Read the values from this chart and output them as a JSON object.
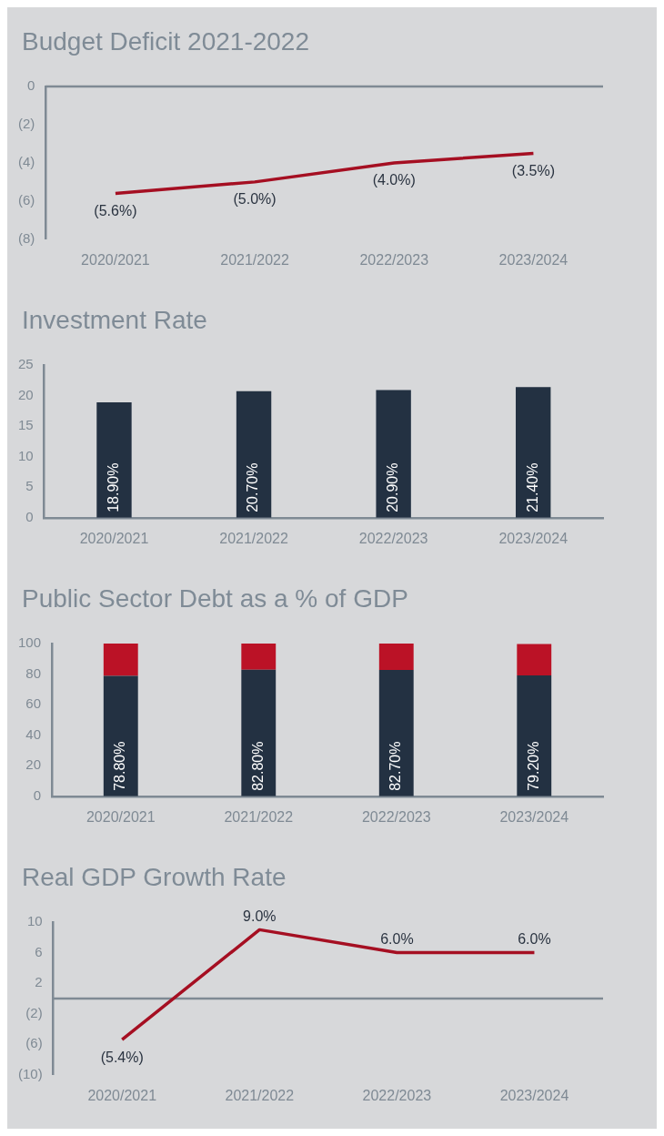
{
  "chart_data": [
    {
      "type": "line",
      "title": "Budget Deficit 2021-2022",
      "categories": [
        "2020/2021",
        "2021/2022",
        "2022/2023",
        "2023/2024"
      ],
      "values": [
        -5.6,
        -5.0,
        -4.0,
        -3.5
      ],
      "color": "#a50f22",
      "value_labels": [
        "(5.6%)",
        "(5.0%)",
        "(4.0%)",
        "(3.5%)"
      ],
      "ylim": [
        -8,
        0
      ],
      "yticks": [
        {
          "value": -8,
          "label": "(8)"
        },
        {
          "value": -6,
          "label": "(6)"
        },
        {
          "value": -4,
          "label": "(4)"
        },
        {
          "value": -2,
          "label": "(2)"
        },
        0
      ],
      "ref_lines": [
        {
          "axis": "y",
          "value": 0,
          "color": "#7f8a94"
        }
      ],
      "grid": false,
      "legend": false,
      "marker": "none"
    },
    {
      "type": "bar",
      "title": "Investment Rate",
      "categories": [
        "2020/2021",
        "2021/2022",
        "2022/2023",
        "2023/2024"
      ],
      "values": [
        18.9,
        20.7,
        20.9,
        21.4
      ],
      "color": "#233142",
      "value_labels": [
        "18.90%",
        "20.70%",
        "20.90%",
        "21.40%"
      ],
      "ylim": [
        0,
        25
      ],
      "yticks": [
        0,
        5,
        10,
        15,
        20,
        25
      ],
      "grid": false,
      "legend": false
    },
    {
      "type": "bar",
      "title": "Public Sector Debt as a % of GDP",
      "categories": [
        "2020/2021",
        "2021/2022",
        "2022/2023",
        "2023/2024"
      ],
      "stacked": true,
      "series": [
        {
          "color": "#233142",
          "values": [
            78.8,
            82.8,
            82.7,
            79.2
          ],
          "value_labels": [
            "78.80%",
            "82.80%",
            "82.70%",
            "79.20%"
          ]
        },
        {
          "color": "#bb1226",
          "values": [
            21.2,
            17.2,
            17.3,
            20.5
          ]
        }
      ],
      "ylim": [
        0,
        100
      ],
      "yticks": [
        0,
        20,
        40,
        60,
        80,
        100
      ],
      "grid": false,
      "legend": false
    },
    {
      "type": "line",
      "title": "Real GDP Growth Rate",
      "categories": [
        "2020/2021",
        "2021/2022",
        "2022/2023",
        "2023/2024"
      ],
      "values": [
        -5.4,
        9.0,
        6.0,
        6.0
      ],
      "color": "#a50f22",
      "value_labels": [
        "(5.4%)",
        "9.0%",
        "6.0%",
        "6.0%"
      ],
      "ylim": [
        -10,
        10
      ],
      "yticks": [
        {
          "value": -10,
          "label": "(10)"
        },
        {
          "value": -6,
          "label": "(6)"
        },
        {
          "value": -2,
          "label": "(2)"
        },
        2,
        6,
        10
      ],
      "ref_lines": [
        {
          "axis": "y",
          "value": 0,
          "color": "#7f8a94"
        }
      ],
      "grid": false,
      "legend": false,
      "marker": "none"
    }
  ]
}
